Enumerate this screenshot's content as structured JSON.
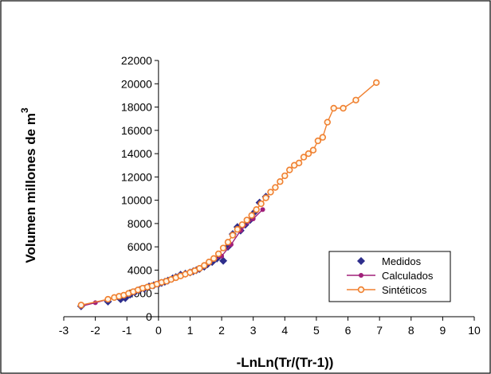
{
  "chart_data": {
    "type": "scatter",
    "title": "",
    "xlabel": "-LnLn(Tr/(Tr-1))",
    "ylabel": "Volumen  millones de m",
    "ylabel_superscript": "3",
    "xlim": [
      -3,
      10
    ],
    "ylim": [
      0,
      22000
    ],
    "x_ticks": [
      -3,
      -2,
      -1,
      0,
      1,
      2,
      3,
      4,
      5,
      6,
      7,
      8,
      9,
      10
    ],
    "x_tick_labels": [
      "-3",
      "-2",
      "-1",
      "0",
      "1",
      "2",
      "3",
      "4",
      "5",
      "6",
      "7",
      "8",
      "9",
      "10"
    ],
    "y_ticks": [
      0,
      2000,
      4000,
      6000,
      8000,
      10000,
      12000,
      14000,
      16000,
      18000,
      20000,
      22000
    ],
    "y_tick_labels": [
      "0",
      "2000",
      "4000",
      "6000",
      "8000",
      "10000",
      "12000",
      "14000",
      "16000",
      "18000",
      "20000",
      "22000"
    ],
    "grid": false,
    "legend_position": "bottom-right",
    "series": [
      {
        "name": "Medidos",
        "color": "#2e2e8c",
        "marker": "diamond",
        "line": false,
        "x": [
          -2.45,
          -1.6,
          -1.2,
          -1.05,
          -0.9,
          -0.75,
          -0.6,
          -0.45,
          -0.3,
          -0.15,
          0.0,
          0.1,
          0.2,
          0.3,
          0.45,
          0.55,
          0.7,
          0.85,
          1.0,
          1.1,
          1.2,
          1.3,
          1.45,
          1.55,
          1.7,
          1.85,
          2.05,
          2.2,
          2.35,
          2.5,
          2.6,
          2.75,
          2.9,
          3.05,
          3.2,
          3.4
        ],
        "y": [
          900,
          1300,
          1500,
          1600,
          1900,
          2100,
          2300,
          2400,
          2600,
          2700,
          2800,
          2900,
          3000,
          3100,
          3300,
          3400,
          3600,
          3700,
          3800,
          3900,
          4000,
          4100,
          4300,
          4500,
          4700,
          5000,
          4800,
          6000,
          7100,
          7700,
          7400,
          7900,
          8300,
          9000,
          9800,
          10300
        ]
      },
      {
        "name": "Calculados",
        "color": "#a0207a",
        "marker": "circle",
        "line": true,
        "x": [
          -2.45,
          -2.0,
          -1.6,
          -1.2,
          -0.8,
          -0.4,
          0.0,
          0.4,
          0.8,
          1.2,
          1.6,
          2.0,
          2.3,
          2.6,
          3.0,
          3.3
        ],
        "y": [
          900,
          1200,
          1500,
          1800,
          2100,
          2500,
          2900,
          3200,
          3600,
          4000,
          4600,
          5200,
          6200,
          7400,
          8400,
          9200
        ]
      },
      {
        "name": "Sintéticos",
        "color": "#f08030",
        "marker": "circle-open",
        "line": true,
        "x": [
          -2.45,
          -1.6,
          -1.4,
          -1.25,
          -1.1,
          -0.95,
          -0.8,
          -0.65,
          -0.5,
          -0.35,
          -0.2,
          -0.05,
          0.1,
          0.25,
          0.4,
          0.55,
          0.7,
          0.85,
          1.0,
          1.15,
          1.3,
          1.45,
          1.6,
          1.75,
          1.9,
          2.05,
          2.2,
          2.35,
          2.5,
          2.65,
          2.8,
          2.95,
          3.1,
          3.25,
          3.4,
          3.55,
          3.7,
          3.85,
          4.0,
          4.15,
          4.3,
          4.45,
          4.6,
          4.75,
          4.9,
          5.05,
          5.2,
          5.35,
          5.55,
          5.85,
          6.25,
          6.9
        ],
        "y": [
          1000,
          1500,
          1650,
          1750,
          1850,
          2000,
          2150,
          2300,
          2450,
          2550,
          2650,
          2800,
          2950,
          3050,
          3200,
          3350,
          3500,
          3650,
          3800,
          3950,
          4150,
          4400,
          4700,
          5000,
          5400,
          5900,
          6400,
          7000,
          7500,
          7900,
          8300,
          8700,
          9200,
          9700,
          10200,
          10700,
          11100,
          11600,
          12100,
          12600,
          13000,
          13200,
          13700,
          14000,
          14300,
          15100,
          15400,
          16700,
          17900,
          17900,
          18600,
          20100
        ]
      }
    ]
  }
}
